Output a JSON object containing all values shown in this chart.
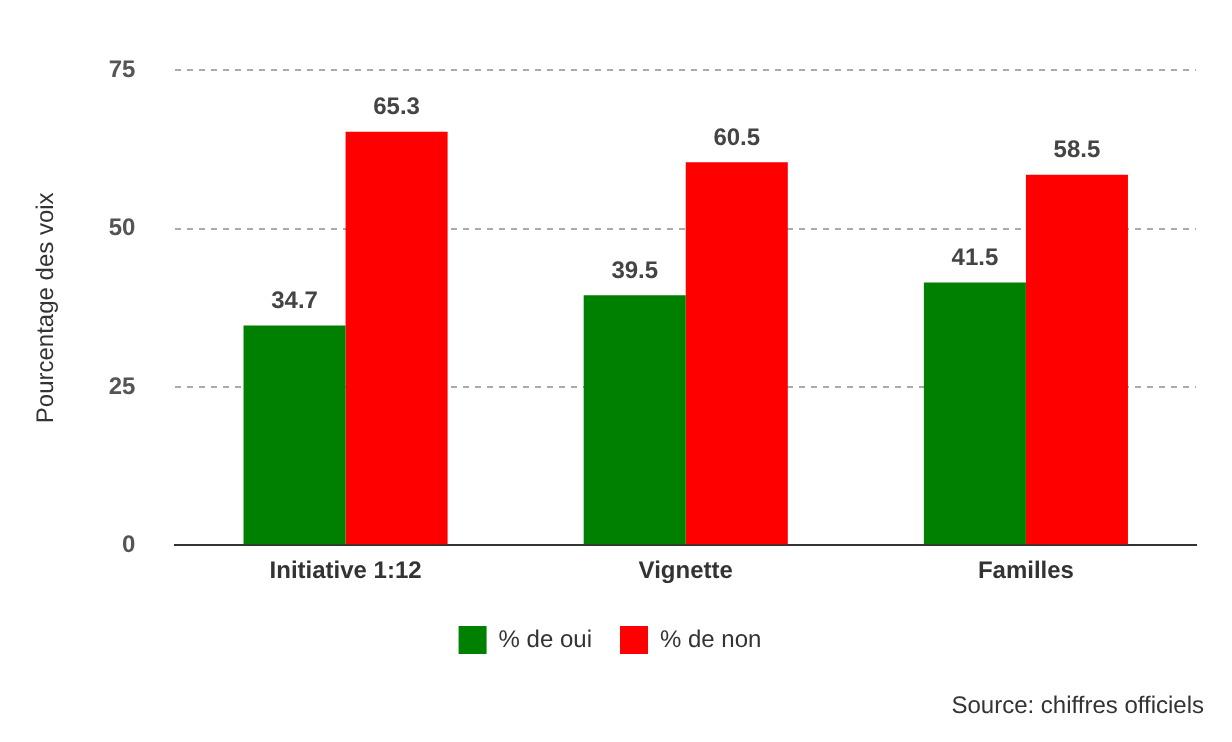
{
  "chart_data": {
    "type": "bar",
    "ylabel": "Pourcentage des voix",
    "categories": [
      "Initiative 1:12",
      "Vignette",
      "Familles"
    ],
    "series": [
      {
        "name": "% de oui",
        "color": "#008000",
        "values": [
          34.7,
          39.5,
          41.5
        ]
      },
      {
        "name": "% de non",
        "color": "#ff0000",
        "values": [
          65.3,
          60.5,
          58.5
        ]
      }
    ],
    "ylim": [
      0,
      75
    ],
    "yticks": [
      0,
      25,
      50,
      75
    ],
    "grid": "y",
    "legend": "bottom",
    "data_labels": true,
    "annotations": [
      "Source: chiffres officiels"
    ]
  }
}
